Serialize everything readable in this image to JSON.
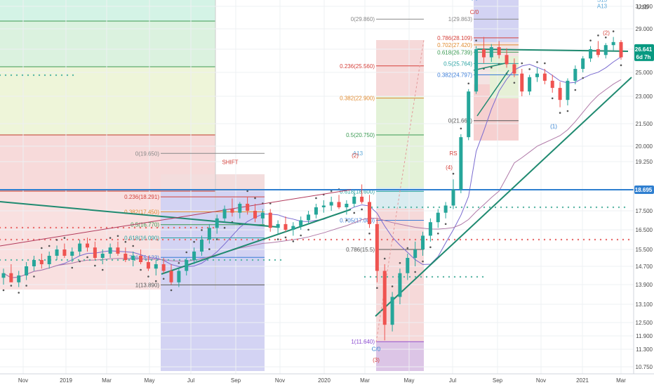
{
  "chart_data": {
    "type": "candlestick",
    "currency_label": "USD",
    "x_ticks": [
      "Nov",
      "2019",
      "Mar",
      "May",
      "Jul",
      "Sep",
      "Nov",
      "2020",
      "Mar",
      "May",
      "Jul",
      "Sep",
      "Nov",
      "2021",
      "Mar"
    ],
    "y_ticks": [
      "31.000",
      "29.000",
      "27.000",
      "25.000",
      "23.000",
      "21.500",
      "20.000",
      "19.250",
      "18.695",
      "17.500",
      "16.500",
      "15.500",
      "14.700",
      "13.900",
      "13.100",
      "12.500",
      "11.900",
      "11.300",
      "10.750"
    ],
    "y_tick_values": [
      31.0,
      29.0,
      27.0,
      25.0,
      23.0,
      21.5,
      20.0,
      19.25,
      18.695,
      17.5,
      16.5,
      15.5,
      14.7,
      13.9,
      13.1,
      12.5,
      11.9,
      11.3,
      10.75
    ],
    "ylim": [
      10.6,
      32.2
    ],
    "last_price": {
      "label": "26.641",
      "value": 26.641,
      "countdown": "6d 7h",
      "color": "#089981"
    },
    "horizontal_level": {
      "label": "18.695",
      "value": 18.695,
      "color": "#2f7fd0"
    },
    "candles": [
      [
        14.2,
        14.6,
        13.9,
        14.4
      ],
      [
        14.4,
        14.8,
        14.1,
        14.0
      ],
      [
        14.0,
        14.5,
        13.8,
        14.3
      ],
      [
        14.3,
        14.9,
        14.1,
        14.7
      ],
      [
        14.7,
        15.2,
        14.5,
        15.0
      ],
      [
        15.0,
        15.3,
        14.6,
        14.8
      ],
      [
        14.8,
        15.4,
        14.6,
        15.2
      ],
      [
        15.2,
        15.7,
        15.0,
        15.5
      ],
      [
        15.5,
        15.8,
        15.1,
        15.2
      ],
      [
        15.2,
        15.6,
        14.9,
        15.4
      ],
      [
        15.4,
        16.0,
        15.2,
        15.8
      ],
      [
        15.8,
        16.1,
        15.4,
        15.6
      ],
      [
        15.6,
        15.9,
        15.0,
        15.1
      ],
      [
        15.1,
        15.5,
        14.8,
        15.3
      ],
      [
        15.3,
        15.8,
        15.1,
        15.6
      ],
      [
        15.6,
        15.9,
        15.2,
        15.3
      ],
      [
        15.3,
        15.6,
        14.9,
        15.0
      ],
      [
        15.0,
        15.4,
        14.7,
        15.2
      ],
      [
        15.2,
        15.5,
        14.8,
        14.9
      ],
      [
        14.9,
        15.2,
        14.5,
        14.6
      ],
      [
        14.6,
        15.0,
        14.3,
        14.8
      ],
      [
        14.8,
        15.1,
        14.4,
        14.5
      ],
      [
        14.5,
        14.8,
        13.9,
        14.0
      ],
      [
        14.0,
        14.6,
        13.8,
        14.5
      ],
      [
        14.5,
        15.1,
        14.3,
        15.0
      ],
      [
        15.0,
        15.6,
        14.8,
        15.4
      ],
      [
        15.4,
        16.2,
        15.2,
        16.0
      ],
      [
        16.0,
        16.8,
        15.8,
        16.6
      ],
      [
        16.6,
        17.3,
        16.3,
        17.1
      ],
      [
        17.1,
        17.8,
        16.9,
        17.6
      ],
      [
        17.6,
        18.2,
        17.2,
        17.4
      ],
      [
        17.4,
        18.0,
        17.1,
        17.9
      ],
      [
        17.9,
        18.3,
        17.3,
        17.5
      ],
      [
        17.5,
        17.9,
        16.9,
        17.1
      ],
      [
        17.1,
        17.6,
        16.8,
        17.4
      ],
      [
        17.4,
        17.6,
        16.4,
        16.6
      ],
      [
        16.6,
        17.0,
        16.3,
        16.8
      ],
      [
        16.8,
        17.2,
        16.4,
        16.5
      ],
      [
        16.5,
        16.9,
        16.2,
        16.7
      ],
      [
        16.7,
        17.2,
        16.5,
        17.0
      ],
      [
        17.0,
        17.5,
        16.8,
        17.3
      ],
      [
        17.3,
        17.9,
        17.1,
        17.7
      ],
      [
        17.7,
        18.1,
        17.4,
        17.8
      ],
      [
        17.8,
        18.3,
        17.5,
        18.0
      ],
      [
        18.0,
        18.4,
        17.6,
        17.7
      ],
      [
        17.7,
        18.1,
        17.3,
        17.9
      ],
      [
        17.9,
        18.5,
        17.7,
        18.3
      ],
      [
        18.3,
        18.8,
        17.9,
        18.0
      ],
      [
        18.0,
        18.4,
        16.6,
        16.8
      ],
      [
        16.8,
        17.1,
        14.0,
        14.5
      ],
      [
        14.5,
        14.8,
        11.7,
        12.4
      ],
      [
        12.4,
        13.6,
        12.1,
        13.4
      ],
      [
        13.4,
        14.6,
        13.1,
        14.4
      ],
      [
        14.4,
        15.3,
        14.1,
        15.1
      ],
      [
        15.1,
        15.9,
        14.7,
        15.5
      ],
      [
        15.5,
        16.4,
        15.2,
        16.2
      ],
      [
        16.2,
        17.1,
        15.9,
        16.9
      ],
      [
        16.9,
        17.6,
        16.6,
        17.4
      ],
      [
        17.4,
        18.0,
        17.1,
        17.8
      ],
      [
        17.8,
        18.9,
        17.6,
        18.7
      ],
      [
        18.7,
        20.8,
        18.5,
        20.6
      ],
      [
        20.6,
        23.6,
        20.4,
        23.4
      ],
      [
        23.4,
        27.3,
        23.2,
        27.0
      ],
      [
        27.0,
        28.2,
        25.8,
        26.3
      ],
      [
        26.3,
        27.5,
        25.9,
        27.2
      ],
      [
        27.2,
        27.8,
        26.2,
        26.5
      ],
      [
        26.5,
        27.1,
        25.4,
        25.7
      ],
      [
        25.7,
        26.2,
        24.6,
        24.9
      ],
      [
        24.9,
        25.3,
        23.0,
        23.4
      ],
      [
        23.4,
        24.8,
        23.1,
        24.6
      ],
      [
        24.6,
        25.4,
        24.2,
        24.9
      ],
      [
        24.9,
        25.3,
        24.0,
        24.3
      ],
      [
        24.3,
        24.8,
        23.3,
        23.7
      ],
      [
        23.7,
        24.2,
        22.4,
        22.8
      ],
      [
        22.8,
        24.5,
        22.5,
        24.3
      ],
      [
        24.3,
        25.6,
        24.0,
        25.3
      ],
      [
        25.3,
        26.4,
        25.0,
        26.2
      ],
      [
        26.2,
        27.3,
        25.9,
        27.0
      ],
      [
        27.0,
        27.8,
        26.3,
        26.5
      ],
      [
        26.5,
        27.6,
        26.2,
        27.4
      ],
      [
        27.4,
        28.2,
        26.9,
        27.7
      ],
      [
        27.7,
        27.9,
        26.1,
        26.3
      ]
    ],
    "fib_tools": [
      {
        "levels": [
          {
            "label": "0(19.650)",
            "value": 19.65
          },
          {
            "label": "0.236(18.291)",
            "value": 18.291
          },
          {
            "label": "0.382(17.450)",
            "value": 17.45
          },
          {
            "label": "0.5(16.770)",
            "value": 16.77
          },
          {
            "label": "0.618(16.090)",
            "value": 16.09
          },
          {
            "label": "0.786(15.123)",
            "value": 15.123
          },
          {
            "label": "1(13.890)",
            "value": 13.89
          }
        ]
      },
      {
        "levels": [
          {
            "label": "0(29.860)",
            "value": 29.86
          },
          {
            "label": "0.236(25.560)",
            "value": 25.56
          },
          {
            "label": "0.382(22.900)",
            "value": 22.9
          },
          {
            "label": "0.5(20.750)",
            "value": 20.75
          },
          {
            "label": "0.618(18.600)",
            "value": 18.6
          },
          {
            "label": "0.705(17.000)",
            "value": 17.0
          },
          {
            "label": "0.786(15.5)",
            "value": 15.5
          },
          {
            "label": "1(11.640)",
            "value": 11.64
          }
        ]
      },
      {
        "levels": [
          {
            "label": "1(29.863)",
            "value": 29.863
          },
          {
            "label": "0.786(28.109)",
            "value": 28.109
          },
          {
            "label": "0.702(27.420)",
            "value": 27.42
          },
          {
            "label": "0.618(26.739)",
            "value": 26.739
          },
          {
            "label": "0.5(25.764)",
            "value": 25.764
          },
          {
            "label": "0.382(24.797)",
            "value": 24.797
          },
          {
            "label": "0(21.665)",
            "value": 21.665
          }
        ]
      }
    ],
    "annotations": [
      {
        "text": "SHIFT",
        "price": 19.2,
        "color": "#d5403a"
      },
      {
        "text": "A13",
        "price": 19.55,
        "color": "#5aa6d8"
      },
      {
        "text": "C/0",
        "price": 30.3,
        "color": "#d5403a"
      },
      {
        "text": "S13",
        "price": 31.4,
        "color": "#5aa6d8"
      },
      {
        "text": "A13",
        "price": 30.85,
        "color": "#5aa6d8"
      },
      {
        "text": "C/0",
        "price": 11.25,
        "color": "#2f7fd0"
      },
      {
        "text": "(3)",
        "price": 10.9,
        "color": "#d5403a"
      },
      {
        "text": "(2)",
        "price": 19.45,
        "color": "#d5403a"
      },
      {
        "text": "(4)",
        "price": 19.1,
        "color": "#d5403a"
      },
      {
        "text": "RS",
        "price": 19.55,
        "color": "#d5403a"
      },
      {
        "text": "(1)",
        "price": 31.6,
        "color": "#2f7fd0"
      },
      {
        "text": "(2)",
        "price": 28.4,
        "color": "#d5403a"
      },
      {
        "text": "(1)",
        "price": 21.2,
        "color": "#2f7fd0"
      }
    ]
  }
}
